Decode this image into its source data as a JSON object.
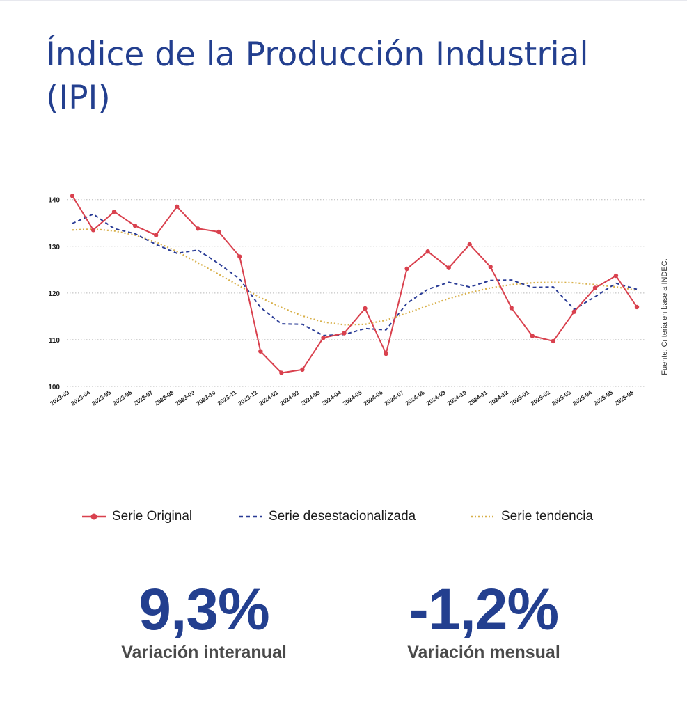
{
  "header": {
    "title": "Índice de la Producción Industrial (IPI)"
  },
  "source_note": "Fuente: Criteria en base a INDEC.",
  "legend": [
    {
      "label": "Serie Original",
      "color": "#d9414e",
      "style": "solid-marker"
    },
    {
      "label": "Serie desestacionalizada",
      "color": "#2a3c96",
      "style": "dashed"
    },
    {
      "label": "Serie tendencia",
      "color": "#d8b04a",
      "style": "dotted"
    }
  ],
  "kpis": [
    {
      "value": "9,3%",
      "label": "Variación interanual"
    },
    {
      "value": "-1,2%",
      "label": "Variación mensual"
    }
  ],
  "colors": {
    "title": "#233f8f",
    "original": "#d9414e",
    "seasonal": "#2a3c96",
    "trend": "#d8b04a",
    "grid": "#b9b9b9"
  },
  "chart_data": {
    "type": "line",
    "title": "",
    "xlabel": "",
    "ylabel": "",
    "ylim": [
      100,
      141
    ],
    "yticks": [
      100,
      110,
      120,
      130,
      140
    ],
    "grid": true,
    "legend_position": "bottom",
    "categories": [
      "2023-03",
      "2023-04",
      "2023-05",
      "2023-06",
      "2023-07",
      "2023-08",
      "2023-09",
      "2023-10",
      "2023-11",
      "2023-12",
      "2024-01",
      "2024-02",
      "2024-03",
      "2024-04",
      "2024-05",
      "2024-06",
      "2024-07",
      "2024-08",
      "2024-09",
      "2024-10",
      "2024-11",
      "2024-12",
      "2025-01",
      "2025-02",
      "2025-03",
      "2025-04",
      "2025-05",
      "2025-06"
    ],
    "series": [
      {
        "name": "Serie Original",
        "values": [
          140.8,
          133.5,
          137.4,
          134.4,
          132.4,
          138.5,
          133.8,
          133.1,
          127.8,
          107.5,
          102.9,
          103.6,
          110.4,
          111.4,
          116.7,
          107.0,
          125.2,
          128.9,
          125.4,
          130.4,
          125.6,
          116.8,
          110.8,
          109.7,
          116.0,
          121.1,
          123.7,
          117.0
        ]
      },
      {
        "name": "Serie desestacionalizada",
        "values": [
          134.9,
          136.9,
          133.8,
          132.7,
          130.4,
          128.5,
          129.2,
          126.3,
          123.0,
          116.9,
          113.4,
          113.3,
          110.9,
          111.1,
          112.4,
          112.1,
          117.8,
          120.8,
          122.3,
          121.3,
          122.7,
          122.8,
          121.2,
          121.3,
          116.5,
          119.2,
          122.1,
          120.8
        ]
      },
      {
        "name": "Serie tendencia",
        "values": [
          133.5,
          133.7,
          133.3,
          132.4,
          130.9,
          128.9,
          126.5,
          124.0,
          121.5,
          119.0,
          116.9,
          115.1,
          113.8,
          113.2,
          113.3,
          114.2,
          115.7,
          117.3,
          118.8,
          120.1,
          121.1,
          121.8,
          122.2,
          122.3,
          122.2,
          121.8,
          121.3,
          120.6
        ]
      }
    ]
  }
}
